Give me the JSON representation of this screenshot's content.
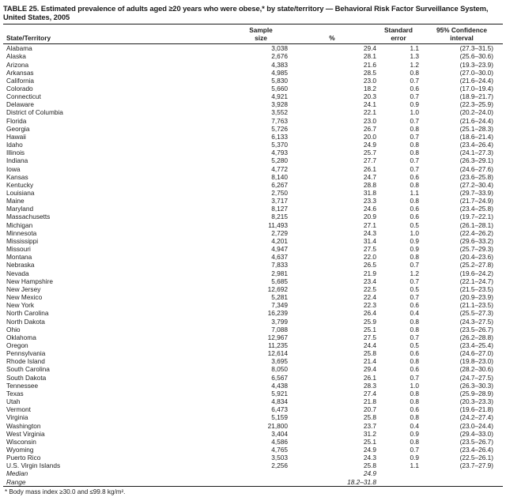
{
  "title": "TABLE 25. Estimated prevalence of adults aged ≥20 years who were obese,* by state/territory — Behavioral Risk Factor Surveillance System, United States, 2005",
  "footnote": "* Body mass index ≥30.0 and ≤99.8 kg/m².",
  "table": {
    "headers": [
      "State/Territory",
      "Sample\nsize",
      "%",
      "Standard\nerror",
      "95% Confidence\ninterval"
    ],
    "rows": [
      {
        "state": "Alabama",
        "n": "3,038",
        "pct": "29.4",
        "se": "1.1",
        "ci": "(27.3–31.5)"
      },
      {
        "state": "Alaska",
        "n": "2,676",
        "pct": "28.1",
        "se": "1.3",
        "ci": "(25.6–30.6)"
      },
      {
        "state": "Arizona",
        "n": "4,383",
        "pct": "21.6",
        "se": "1.2",
        "ci": "(19.3–23.9)"
      },
      {
        "state": "Arkansas",
        "n": "4,985",
        "pct": "28.5",
        "se": "0.8",
        "ci": "(27.0–30.0)"
      },
      {
        "state": "California",
        "n": "5,830",
        "pct": "23.0",
        "se": "0.7",
        "ci": "(21.6–24.4)"
      },
      {
        "state": "Colorado",
        "n": "5,660",
        "pct": "18.2",
        "se": "0.6",
        "ci": "(17.0–19.4)"
      },
      {
        "state": "Connecticut",
        "n": "4,921",
        "pct": "20.3",
        "se": "0.7",
        "ci": "(18.9–21.7)"
      },
      {
        "state": "Delaware",
        "n": "3,928",
        "pct": "24.1",
        "se": "0.9",
        "ci": "(22.3–25.9)"
      },
      {
        "state": "District of Columbia",
        "n": "3,552",
        "pct": "22.1",
        "se": "1.0",
        "ci": "(20.2–24.0)"
      },
      {
        "state": "Florida",
        "n": "7,763",
        "pct": "23.0",
        "se": "0.7",
        "ci": "(21.6–24.4)"
      },
      {
        "state": "Georgia",
        "n": "5,726",
        "pct": "26.7",
        "se": "0.8",
        "ci": "(25.1–28.3)"
      },
      {
        "state": "Hawaii",
        "n": "6,133",
        "pct": "20.0",
        "se": "0.7",
        "ci": "(18.6–21.4)"
      },
      {
        "state": "Idaho",
        "n": "5,370",
        "pct": "24.9",
        "se": "0.8",
        "ci": "(23.4–26.4)"
      },
      {
        "state": "Illinois",
        "n": "4,793",
        "pct": "25.7",
        "se": "0.8",
        "ci": "(24.1–27.3)"
      },
      {
        "state": "Indiana",
        "n": "5,280",
        "pct": "27.7",
        "se": "0.7",
        "ci": "(26.3–29.1)"
      },
      {
        "state": "Iowa",
        "n": "4,772",
        "pct": "26.1",
        "se": "0.7",
        "ci": "(24.6–27.6)"
      },
      {
        "state": "Kansas",
        "n": "8,140",
        "pct": "24.7",
        "se": "0.6",
        "ci": "(23.6–25.8)"
      },
      {
        "state": "Kentucky",
        "n": "6,267",
        "pct": "28.8",
        "se": "0.8",
        "ci": "(27.2–30.4)"
      },
      {
        "state": "Louisiana",
        "n": "2,750",
        "pct": "31.8",
        "se": "1.1",
        "ci": "(29.7–33.9)"
      },
      {
        "state": "Maine",
        "n": "3,717",
        "pct": "23.3",
        "se": "0.8",
        "ci": "(21.7–24.9)"
      },
      {
        "state": "Maryland",
        "n": "8,127",
        "pct": "24.6",
        "se": "0.6",
        "ci": "(23.4–25.8)"
      },
      {
        "state": "Massachusetts",
        "n": "8,215",
        "pct": "20.9",
        "se": "0.6",
        "ci": "(19.7–22.1)"
      },
      {
        "state": "Michigan",
        "n": "11,493",
        "pct": "27.1",
        "se": "0.5",
        "ci": "(26.1–28.1)"
      },
      {
        "state": "Minnesota",
        "n": "2,729",
        "pct": "24.3",
        "se": "1.0",
        "ci": "(22.4–26.2)"
      },
      {
        "state": "Mississippi",
        "n": "4,201",
        "pct": "31.4",
        "se": "0.9",
        "ci": "(29.6–33.2)"
      },
      {
        "state": "Missouri",
        "n": "4,947",
        "pct": "27.5",
        "se": "0.9",
        "ci": "(25.7–29.3)"
      },
      {
        "state": "Montana",
        "n": "4,637",
        "pct": "22.0",
        "se": "0.8",
        "ci": "(20.4–23.6)"
      },
      {
        "state": "Nebraska",
        "n": "7,833",
        "pct": "26.5",
        "se": "0.7",
        "ci": "(25.2–27.8)"
      },
      {
        "state": "Nevada",
        "n": "2,981",
        "pct": "21.9",
        "se": "1.2",
        "ci": "(19.6–24.2)"
      },
      {
        "state": "New Hampshire",
        "n": "5,685",
        "pct": "23.4",
        "se": "0.7",
        "ci": "(22.1–24.7)"
      },
      {
        "state": "New Jersey",
        "n": "12,692",
        "pct": "22.5",
        "se": "0.5",
        "ci": "(21.5–23.5)"
      },
      {
        "state": "New Mexico",
        "n": "5,281",
        "pct": "22.4",
        "se": "0.7",
        "ci": "(20.9–23.9)"
      },
      {
        "state": "New York",
        "n": "7,349",
        "pct": "22.3",
        "se": "0.6",
        "ci": "(21.1–23.5)"
      },
      {
        "state": "North Carolina",
        "n": "16,239",
        "pct": "26.4",
        "se": "0.4",
        "ci": "(25.5–27.3)"
      },
      {
        "state": "North Dakota",
        "n": "3,799",
        "pct": "25.9",
        "se": "0.8",
        "ci": "(24.3–27.5)"
      },
      {
        "state": "Ohio",
        "n": "7,088",
        "pct": "25.1",
        "se": "0.8",
        "ci": "(23.5–26.7)"
      },
      {
        "state": "Oklahoma",
        "n": "12,967",
        "pct": "27.5",
        "se": "0.7",
        "ci": "(26.2–28.8)"
      },
      {
        "state": "Oregon",
        "n": "11,235",
        "pct": "24.4",
        "se": "0.5",
        "ci": "(23.4–25.4)"
      },
      {
        "state": "Pennsylvania",
        "n": "12,614",
        "pct": "25.8",
        "se": "0.6",
        "ci": "(24.6–27.0)"
      },
      {
        "state": "Rhode Island",
        "n": "3,695",
        "pct": "21.4",
        "se": "0.8",
        "ci": "(19.8–23.0)"
      },
      {
        "state": "South Carolina",
        "n": "8,050",
        "pct": "29.4",
        "se": "0.6",
        "ci": "(28.2–30.6)"
      },
      {
        "state": "South Dakota",
        "n": "6,567",
        "pct": "26.1",
        "se": "0.7",
        "ci": "(24.7–27.5)"
      },
      {
        "state": "Tennessee",
        "n": "4,438",
        "pct": "28.3",
        "se": "1.0",
        "ci": "(26.3–30.3)"
      },
      {
        "state": "Texas",
        "n": "5,921",
        "pct": "27.4",
        "se": "0.8",
        "ci": "(25.9–28.9)"
      },
      {
        "state": "Utah",
        "n": "4,834",
        "pct": "21.8",
        "se": "0.8",
        "ci": "(20.3–23.3)"
      },
      {
        "state": "Vermont",
        "n": "6,473",
        "pct": "20.7",
        "se": "0.6",
        "ci": "(19.6–21.8)"
      },
      {
        "state": "Virginia",
        "n": "5,159",
        "pct": "25.8",
        "se": "0.8",
        "ci": "(24.2–27.4)"
      },
      {
        "state": "Washington",
        "n": "21,800",
        "pct": "23.7",
        "se": "0.4",
        "ci": "(23.0–24.4)"
      },
      {
        "state": "West Virginia",
        "n": "3,404",
        "pct": "31.2",
        "se": "0.9",
        "ci": "(29.4–33.0)"
      },
      {
        "state": "Wisconsin",
        "n": "4,586",
        "pct": "25.1",
        "se": "0.8",
        "ci": "(23.5–26.7)"
      },
      {
        "state": "Wyoming",
        "n": "4,765",
        "pct": "24.9",
        "se": "0.7",
        "ci": "(23.4–26.4)"
      },
      {
        "state": "Puerto Rico",
        "n": "3,503",
        "pct": "24.3",
        "se": "0.9",
        "ci": "(22.5–26.1)"
      },
      {
        "state": "U.S. Virgin Islands",
        "n": "2,256",
        "pct": "25.8",
        "se": "1.1",
        "ci": "(23.7–27.9)"
      },
      {
        "state": "Median",
        "n": "",
        "pct": "24.9",
        "se": "",
        "ci": "",
        "em": true
      },
      {
        "state": "Range",
        "n": "",
        "pct": "18.2–31.8",
        "se": "",
        "ci": "",
        "em": true
      }
    ]
  }
}
